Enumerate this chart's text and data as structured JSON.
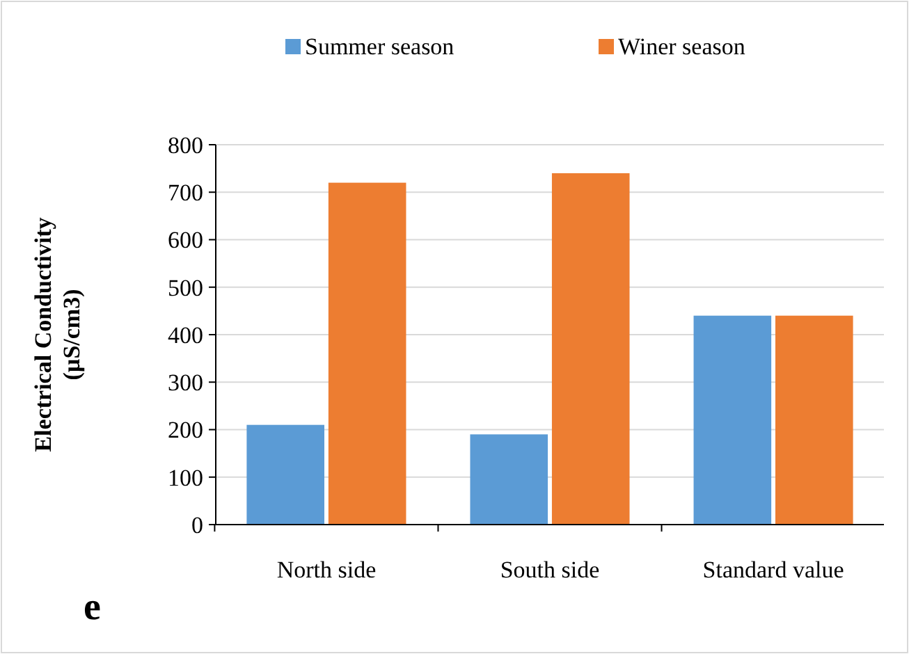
{
  "chart_data": {
    "type": "bar",
    "ylabel": "Electrical Conductivity (µS/cm3)",
    "categories": [
      "North side",
      "South side",
      "Standard value"
    ],
    "series": [
      {
        "name": "Summer season",
        "color": "#5b9bd5",
        "values": [
          210,
          190,
          440
        ]
      },
      {
        "name": "Winer season",
        "color": "#ed7d31",
        "values": [
          720,
          740,
          440
        ]
      }
    ],
    "ylim": [
      0,
      800
    ],
    "yticks": [
      0,
      100,
      200,
      300,
      400,
      500,
      600,
      700,
      800
    ],
    "grid": "y",
    "legend": "top",
    "annotations": [
      "e"
    ]
  }
}
